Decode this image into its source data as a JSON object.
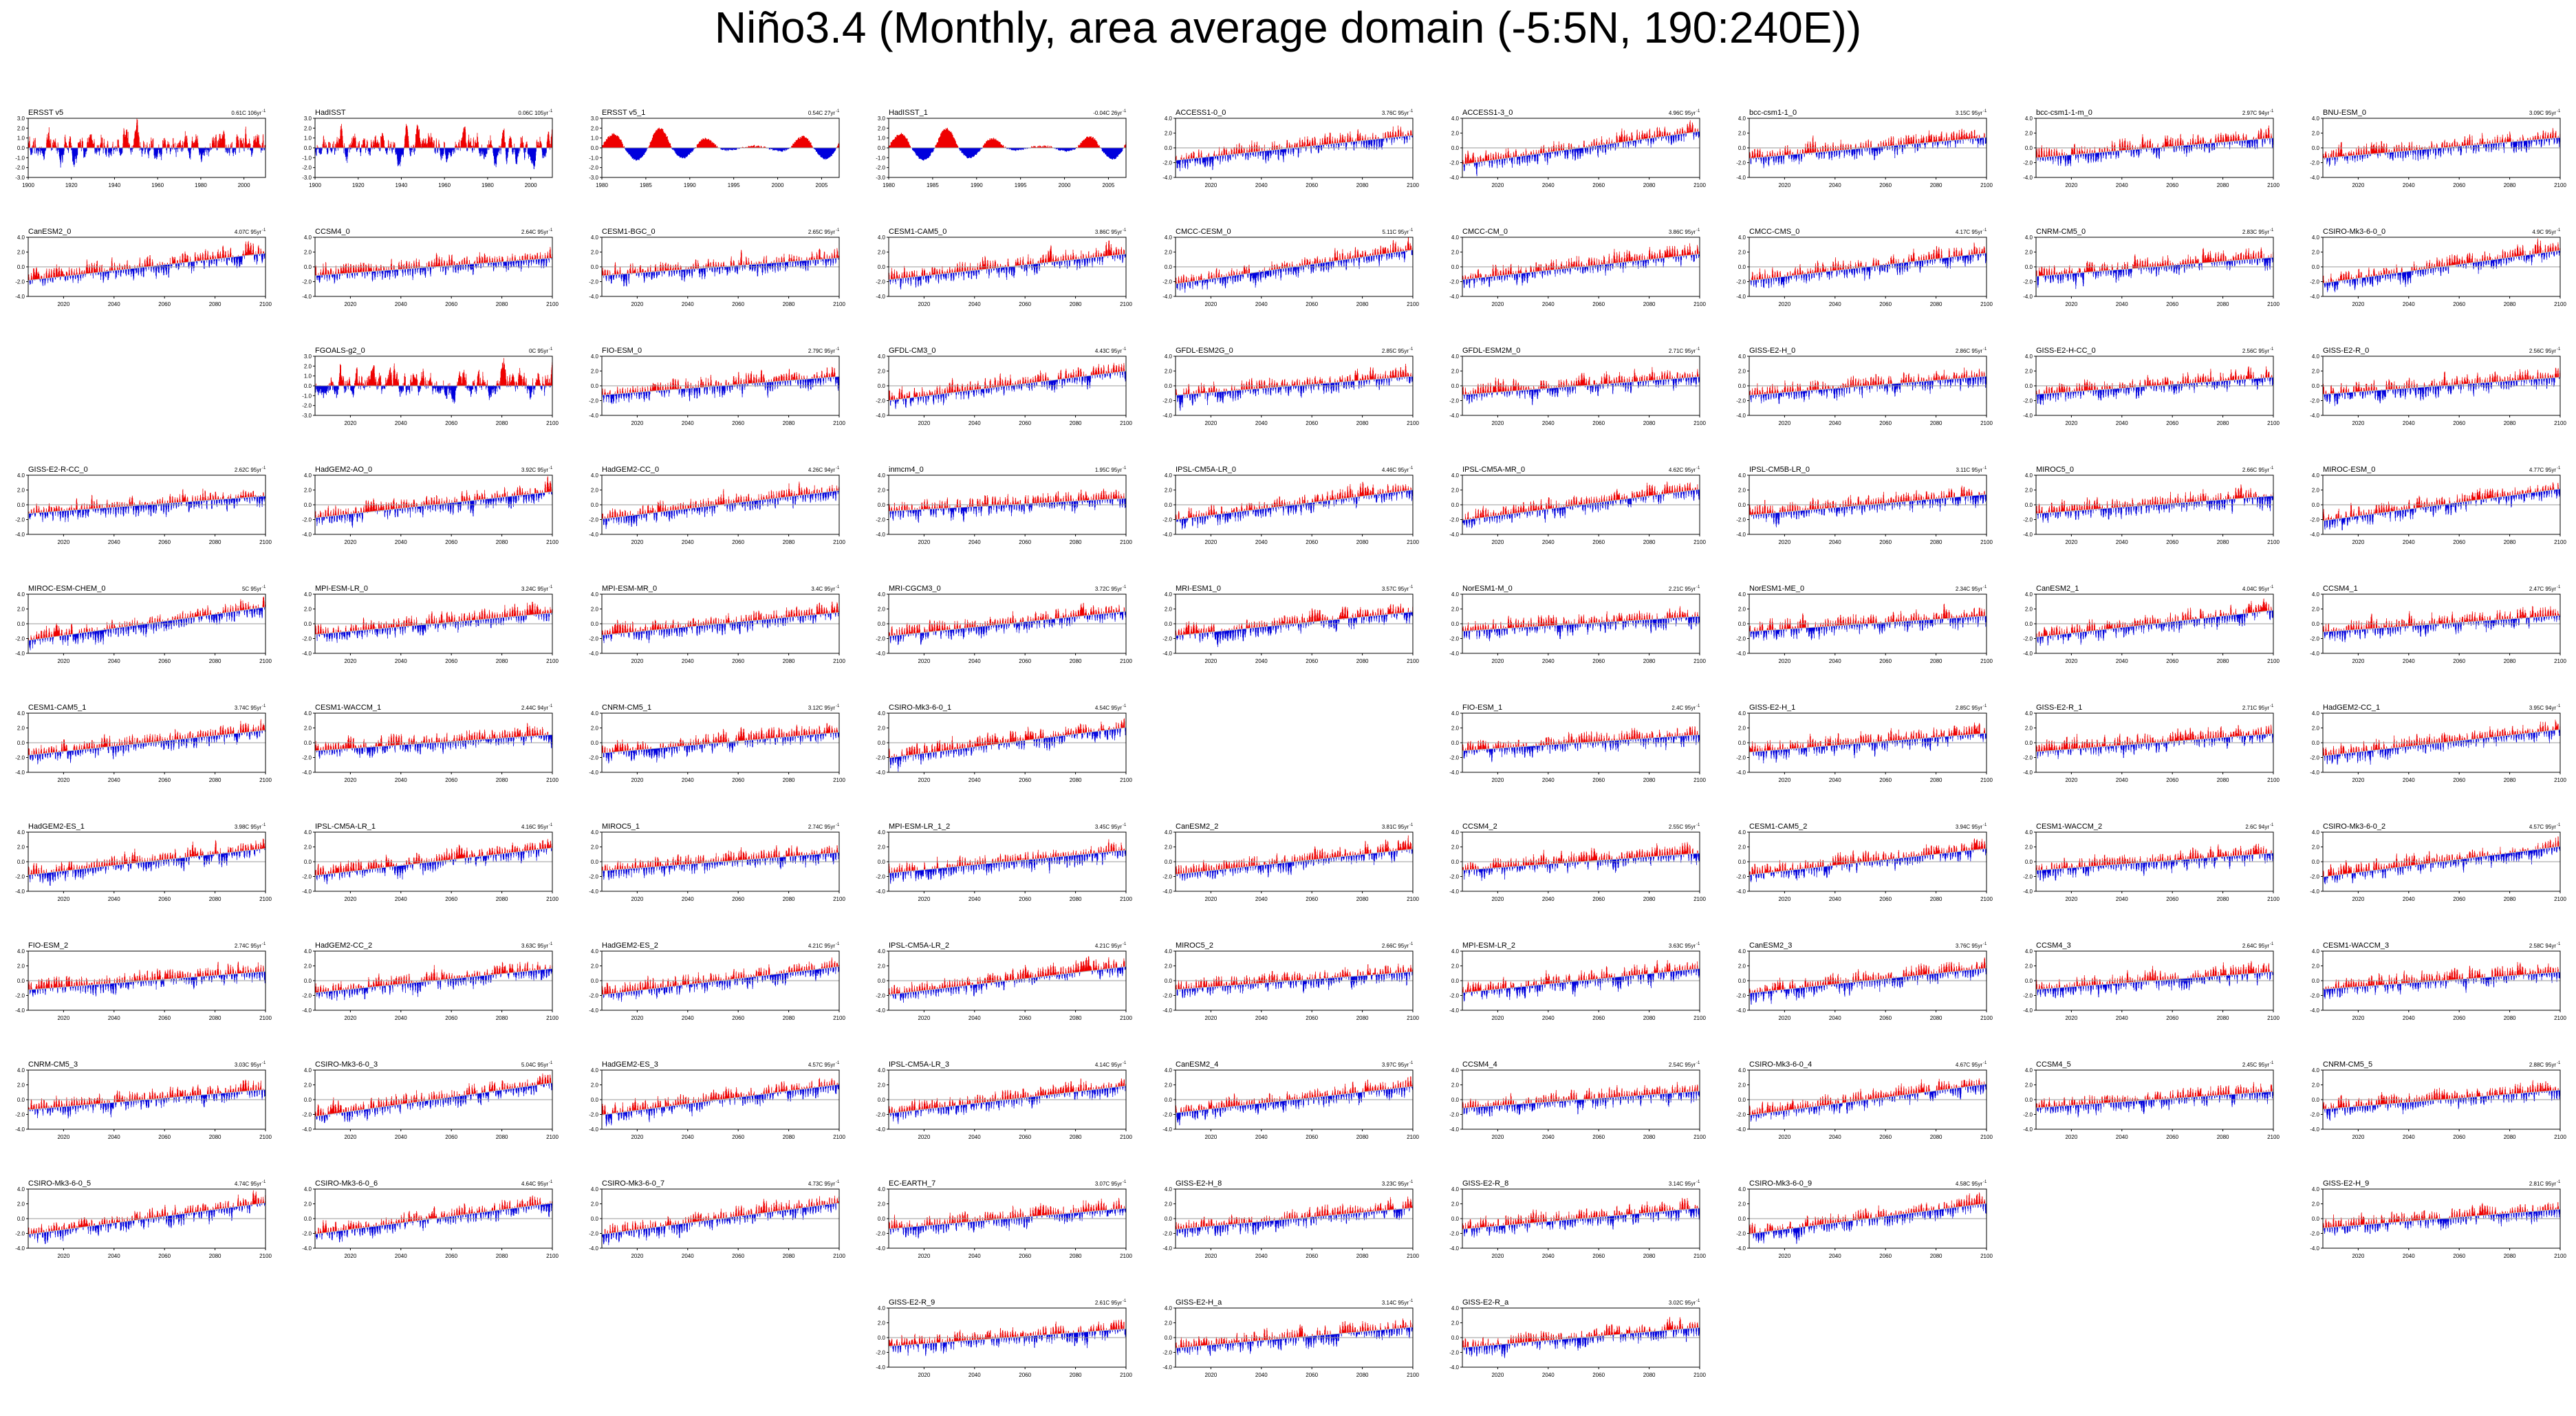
{
  "title": "Niño3.4 (Monthly, area average domain (-5:5N, 190:240E))",
  "colors": {
    "positive": "#ee0000",
    "negative": "#0000dd",
    "zero_line": "#999999",
    "frame": "#000000",
    "trend_line": "#ffffff"
  },
  "chart_data": {
    "type": "area",
    "description_of_series": "monthly Niño3.4 anomaly, positive fill red, negative fill blue",
    "panels": [
      {
        "row": 0,
        "col": 0,
        "name": "ERSST v5",
        "trend": "0.61C 106yr",
        "obs": true,
        "xticks": [
          "1900",
          "1920",
          "1940",
          "1960",
          "1980",
          "2000"
        ],
        "yticks": [
          "3.0",
          "2.0",
          "1.0",
          "0.0",
          "-1.0",
          "-2.0",
          "-3.0"
        ],
        "ylim": [
          -3,
          3
        ],
        "x_start": 1900,
        "x_end": 2010
      },
      {
        "row": 0,
        "col": 1,
        "name": "HadISST",
        "trend": "0.06C 105yr",
        "obs": true,
        "xticks": [
          "1900",
          "1920",
          "1940",
          "1960",
          "1980",
          "2000"
        ],
        "yticks": [
          "3.0",
          "2.0",
          "1.0",
          "0.0",
          "-1.0",
          "-2.0",
          "-3.0"
        ],
        "ylim": [
          -3,
          3
        ],
        "x_start": 1900,
        "x_end": 2010
      },
      {
        "row": 0,
        "col": 2,
        "name": "ERSST v5_1",
        "trend": "0.54C 27yr",
        "obs": true,
        "smooth": true,
        "xticks": [
          "1980",
          "1985",
          "1990",
          "1995",
          "2000",
          "2005"
        ],
        "yticks": [
          "3.0",
          "2.0",
          "1.0",
          "0.0",
          "-1.0",
          "-2.0",
          "-3.0"
        ],
        "ylim": [
          -3,
          3
        ],
        "x_start": 1980,
        "x_end": 2007
      },
      {
        "row": 0,
        "col": 3,
        "name": "HadISST_1",
        "trend": "-0.04C 26yr",
        "obs": true,
        "smooth": true,
        "xticks": [
          "1980",
          "1985",
          "1990",
          "1995",
          "2000",
          "2005"
        ],
        "yticks": [
          "3.0",
          "2.0",
          "1.0",
          "0.0",
          "-1.0",
          "-2.0",
          "-3.0"
        ],
        "ylim": [
          -3,
          3
        ],
        "x_start": 1980,
        "x_end": 2007
      },
      {
        "row": 0,
        "col": 4,
        "name": "ACCESS1-0_0",
        "trend": "3.76C 95yr"
      },
      {
        "row": 0,
        "col": 5,
        "name": "ACCESS1-3_0",
        "trend": "4.96C 95yr"
      },
      {
        "row": 0,
        "col": 6,
        "name": "bcc-csm1-1_0",
        "trend": "3.15C 95yr"
      },
      {
        "row": 0,
        "col": 7,
        "name": "bcc-csm1-1-m_0",
        "trend": "2.97C 94yr"
      },
      {
        "row": 0,
        "col": 8,
        "name": "BNU-ESM_0",
        "trend": "3.09C 95yr"
      },
      {
        "row": 1,
        "col": 0,
        "name": "CanESM2_0",
        "trend": "4.07C 95yr"
      },
      {
        "row": 1,
        "col": 1,
        "name": "CCSM4_0",
        "trend": "2.64C 95yr"
      },
      {
        "row": 1,
        "col": 2,
        "name": "CESM1-BGC_0",
        "trend": "2.65C 95yr"
      },
      {
        "row": 1,
        "col": 3,
        "name": "CESM1-CAM5_0",
        "trend": "3.86C 95yr"
      },
      {
        "row": 1,
        "col": 4,
        "name": "CMCC-CESM_0",
        "trend": "5.11C 95yr"
      },
      {
        "row": 1,
        "col": 5,
        "name": "CMCC-CM_0",
        "trend": "3.86C 95yr"
      },
      {
        "row": 1,
        "col": 6,
        "name": "CMCC-CMS_0",
        "trend": "4.17C 95yr"
      },
      {
        "row": 1,
        "col": 7,
        "name": "CNRM-CM5_0",
        "trend": "2.83C 95yr"
      },
      {
        "row": 1,
        "col": 8,
        "name": "CSIRO-Mk3-6-0_0",
        "trend": "4.9C 95yr"
      },
      {
        "row": 2,
        "col": 1,
        "name": "FGOALS-g2_0",
        "trend": "0C 95yr",
        "flat": true,
        "yticks": [
          "3.0",
          "2.0",
          "1.0",
          "0.0",
          "-1.0",
          "-2.0",
          "-3.0"
        ],
        "ylim": [
          -3,
          3
        ]
      },
      {
        "row": 2,
        "col": 2,
        "name": "FIO-ESM_0",
        "trend": "2.79C 95yr"
      },
      {
        "row": 2,
        "col": 3,
        "name": "GFDL-CM3_0",
        "trend": "4.43C 95yr"
      },
      {
        "row": 2,
        "col": 4,
        "name": "GFDL-ESM2G_0",
        "trend": "2.85C 95yr"
      },
      {
        "row": 2,
        "col": 5,
        "name": "GFDL-ESM2M_0",
        "trend": "2.71C 95yr"
      },
      {
        "row": 2,
        "col": 6,
        "name": "GISS-E2-H_0",
        "trend": "2.86C 95yr"
      },
      {
        "row": 2,
        "col": 7,
        "name": "GISS-E2-H-CC_0",
        "trend": "2.56C 95yr"
      },
      {
        "row": 2,
        "col": 8,
        "name": "GISS-E2-R_0",
        "trend": "2.56C 95yr"
      },
      {
        "row": 3,
        "col": 0,
        "name": "GISS-E2-R-CC_0",
        "trend": "2.62C 95yr"
      },
      {
        "row": 3,
        "col": 1,
        "name": "HadGEM2-AO_0",
        "trend": "3.92C 95yr"
      },
      {
        "row": 3,
        "col": 2,
        "name": "HadGEM2-CC_0",
        "trend": "4.26C 94yr"
      },
      {
        "row": 3,
        "col": 3,
        "name": "inmcm4_0",
        "trend": "1.95C 95yr"
      },
      {
        "row": 3,
        "col": 4,
        "name": "IPSL-CM5A-LR_0",
        "trend": "4.46C 95yr"
      },
      {
        "row": 3,
        "col": 5,
        "name": "IPSL-CM5A-MR_0",
        "trend": "4.62C 95yr"
      },
      {
        "row": 3,
        "col": 6,
        "name": "IPSL-CM5B-LR_0",
        "trend": "3.11C 95yr"
      },
      {
        "row": 3,
        "col": 7,
        "name": "MIROC5_0",
        "trend": "2.66C 95yr"
      },
      {
        "row": 3,
        "col": 8,
        "name": "MIROC-ESM_0",
        "trend": "4.77C 95yr"
      },
      {
        "row": 4,
        "col": 0,
        "name": "MIROC-ESM-CHEM_0",
        "trend": "5C 95yr"
      },
      {
        "row": 4,
        "col": 1,
        "name": "MPI-ESM-LR_0",
        "trend": "3.24C 95yr"
      },
      {
        "row": 4,
        "col": 2,
        "name": "MPI-ESM-MR_0",
        "trend": "3.4C 95yr"
      },
      {
        "row": 4,
        "col": 3,
        "name": "MRI-CGCM3_0",
        "trend": "3.72C 95yr"
      },
      {
        "row": 4,
        "col": 4,
        "name": "MRI-ESM1_0",
        "trend": "3.57C 95yr"
      },
      {
        "row": 4,
        "col": 5,
        "name": "NorESM1-M_0",
        "trend": "2.21C 95yr"
      },
      {
        "row": 4,
        "col": 6,
        "name": "NorESM1-ME_0",
        "trend": "2.34C 95yr"
      },
      {
        "row": 4,
        "col": 7,
        "name": "CanESM2_1",
        "trend": "4.04C 95yr"
      },
      {
        "row": 4,
        "col": 8,
        "name": "CCSM4_1",
        "trend": "2.47C 95yr"
      },
      {
        "row": 5,
        "col": 0,
        "name": "CESM1-CAM5_1",
        "trend": "3.74C 95yr"
      },
      {
        "row": 5,
        "col": 1,
        "name": "CESM1-WACCM_1",
        "trend": "2.44C 94yr"
      },
      {
        "row": 5,
        "col": 2,
        "name": "CNRM-CM5_1",
        "trend": "3.12C 95yr"
      },
      {
        "row": 5,
        "col": 3,
        "name": "CSIRO-Mk3-6-0_1",
        "trend": "4.54C 95yr"
      },
      {
        "row": 5,
        "col": 5,
        "name": "FIO-ESM_1",
        "trend": "2.4C 95yr"
      },
      {
        "row": 5,
        "col": 6,
        "name": "GISS-E2-H_1",
        "trend": "2.85C 95yr"
      },
      {
        "row": 5,
        "col": 7,
        "name": "GISS-E2-R_1",
        "trend": "2.71C 95yr"
      },
      {
        "row": 5,
        "col": 8,
        "name": "HadGEM2-CC_1",
        "trend": "3.95C 94yr"
      },
      {
        "row": 6,
        "col": 0,
        "name": "HadGEM2-ES_1",
        "trend": "3.98C 95yr"
      },
      {
        "row": 6,
        "col": 1,
        "name": "IPSL-CM5A-LR_1",
        "trend": "4.16C 95yr"
      },
      {
        "row": 6,
        "col": 2,
        "name": "MIROC5_1",
        "trend": "2.74C 95yr"
      },
      {
        "row": 6,
        "col": 3,
        "name": "MPI-ESM-LR_1_2",
        "trend": "3.45C 95yr"
      },
      {
        "row": 6,
        "col": 4,
        "name": "CanESM2_2",
        "trend": "3.81C 95yr"
      },
      {
        "row": 6,
        "col": 5,
        "name": "CCSM4_2",
        "trend": "2.55C 95yr"
      },
      {
        "row": 6,
        "col": 6,
        "name": "CESM1-CAM5_2",
        "trend": "3.94C 95yr"
      },
      {
        "row": 6,
        "col": 7,
        "name": "CESM1-WACCM_2",
        "trend": "2.6C 94yr"
      },
      {
        "row": 6,
        "col": 8,
        "name": "CSIRO-Mk3-6-0_2",
        "trend": "4.57C 95yr"
      },
      {
        "row": 7,
        "col": 0,
        "name": "FIO-ESM_2",
        "trend": "2.74C 95yr"
      },
      {
        "row": 7,
        "col": 1,
        "name": "HadGEM2-CC_2",
        "trend": "3.63C 95yr"
      },
      {
        "row": 7,
        "col": 2,
        "name": "HadGEM2-ES_2",
        "trend": "4.21C 95yr"
      },
      {
        "row": 7,
        "col": 3,
        "name": "IPSL-CM5A-LR_2",
        "trend": "4.21C 95yr"
      },
      {
        "row": 7,
        "col": 4,
        "name": "MIROC5_2",
        "trend": "2.66C 95yr"
      },
      {
        "row": 7,
        "col": 5,
        "name": "MPI-ESM-LR_2",
        "trend": "3.63C 95yr"
      },
      {
        "row": 7,
        "col": 6,
        "name": "CanESM2_3",
        "trend": "3.76C 95yr"
      },
      {
        "row": 7,
        "col": 7,
        "name": "CCSM4_3",
        "trend": "2.64C 95yr"
      },
      {
        "row": 7,
        "col": 8,
        "name": "CESM1-WACCM_3",
        "trend": "2.58C 94yr"
      },
      {
        "row": 8,
        "col": 0,
        "name": "CNRM-CM5_3",
        "trend": "3.03C 95yr"
      },
      {
        "row": 8,
        "col": 1,
        "name": "CSIRO-Mk3-6-0_3",
        "trend": "5.04C 95yr"
      },
      {
        "row": 8,
        "col": 2,
        "name": "HadGEM2-ES_3",
        "trend": "4.57C 95yr"
      },
      {
        "row": 8,
        "col": 3,
        "name": "IPSL-CM5A-LR_3",
        "trend": "4.14C 95yr"
      },
      {
        "row": 8,
        "col": 4,
        "name": "CanESM2_4",
        "trend": "3.97C 95yr"
      },
      {
        "row": 8,
        "col": 5,
        "name": "CCSM4_4",
        "trend": "2.54C 95yr"
      },
      {
        "row": 8,
        "col": 6,
        "name": "CSIRO-Mk3-6-0_4",
        "trend": "4.67C 95yr"
      },
      {
        "row": 8,
        "col": 7,
        "name": "CCSM4_5",
        "trend": "2.45C 95yr"
      },
      {
        "row": 8,
        "col": 8,
        "name": "CNRM-CM5_5",
        "trend": "2.88C 95yr"
      },
      {
        "row": 9,
        "col": 0,
        "name": "CSIRO-Mk3-6-0_5",
        "trend": "4.74C 95yr"
      },
      {
        "row": 9,
        "col": 1,
        "name": "CSIRO-Mk3-6-0_6",
        "trend": "4.64C 95yr"
      },
      {
        "row": 9,
        "col": 2,
        "name": "CSIRO-Mk3-6-0_7",
        "trend": "4.73C 95yr"
      },
      {
        "row": 9,
        "col": 3,
        "name": "EC-EARTH_7",
        "trend": "3.07C 95yr"
      },
      {
        "row": 9,
        "col": 4,
        "name": "GISS-E2-H_8",
        "trend": "3.23C 95yr"
      },
      {
        "row": 9,
        "col": 5,
        "name": "GISS-E2-R_8",
        "trend": "3.14C 95yr"
      },
      {
        "row": 9,
        "col": 6,
        "name": "CSIRO-Mk3-6-0_9",
        "trend": "4.58C 95yr"
      },
      {
        "row": 9,
        "col": 8,
        "name": "GISS-E2-H_9",
        "trend": "2.81C 95yr"
      },
      {
        "row": 10,
        "col": 3,
        "name": "GISS-E2-R_9",
        "trend": "2.61C 95yr"
      },
      {
        "row": 10,
        "col": 4,
        "name": "GISS-E2-H_a",
        "trend": "3.14C 95yr"
      },
      {
        "row": 10,
        "col": 5,
        "name": "GISS-E2-R_a",
        "trend": "3.02C 95yr"
      }
    ],
    "default_xticks": [
      "2020",
      "2040",
      "2060",
      "2080",
      "2100"
    ],
    "default_yticks": [
      "4.0",
      "2.0",
      "0.0",
      "-2.0",
      "-4.0"
    ],
    "default_ylim": [
      -4,
      4
    ],
    "default_x_start": 2006,
    "default_x_end": 2100,
    "trend_superscript": "-1"
  }
}
